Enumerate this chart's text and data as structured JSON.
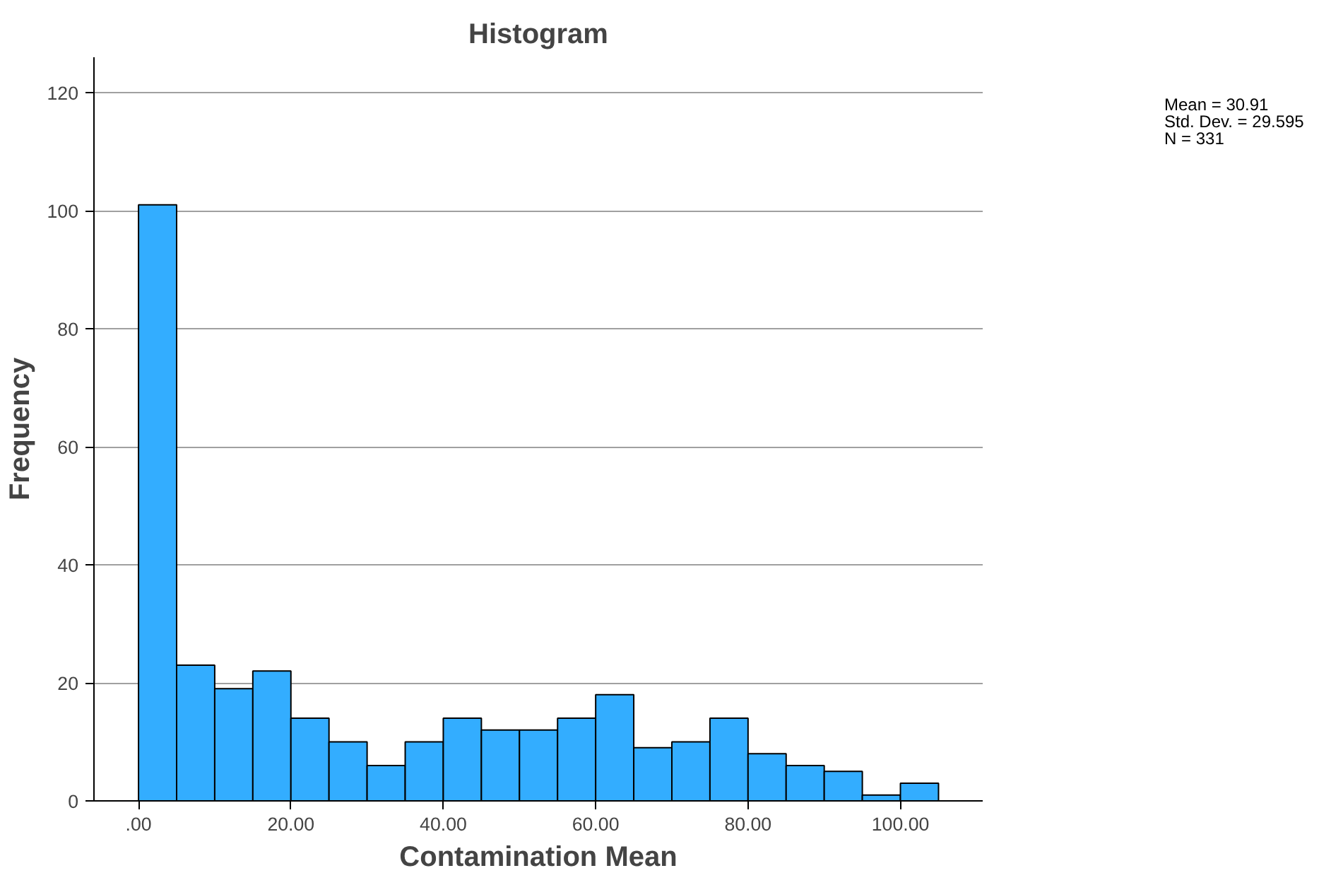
{
  "chart_data": {
    "type": "histogram",
    "title": "Histogram",
    "xlabel": "Contamination Mean",
    "ylabel": "Frequency",
    "bins": [
      0,
      5,
      10,
      15,
      20,
      25,
      30,
      35,
      40,
      45,
      50,
      55,
      60,
      65,
      70,
      75,
      80,
      85,
      90,
      95,
      100,
      105
    ],
    "values": [
      101,
      23,
      19,
      22,
      14,
      10,
      6,
      10,
      14,
      12,
      12,
      14,
      18,
      9,
      10,
      14,
      8,
      6,
      5,
      1,
      3
    ],
    "color": "#33adff",
    "xlim": [
      -5.85,
      110.8
    ],
    "xticks": [
      {
        "value": 0,
        "label": ".00"
      },
      {
        "value": 20,
        "label": "20.00"
      },
      {
        "value": 40,
        "label": "40.00"
      },
      {
        "value": 60,
        "label": "60.00"
      },
      {
        "value": 80,
        "label": "80.00"
      },
      {
        "value": 100,
        "label": "100.00"
      }
    ],
    "ylim": [
      0,
      126
    ],
    "yticks": [
      0,
      20,
      40,
      60,
      80,
      100,
      120
    ],
    "grid": "y",
    "annotations": [
      "Mean = 30.91",
      "Std. Dev. = 29.595",
      "N = 331"
    ]
  }
}
